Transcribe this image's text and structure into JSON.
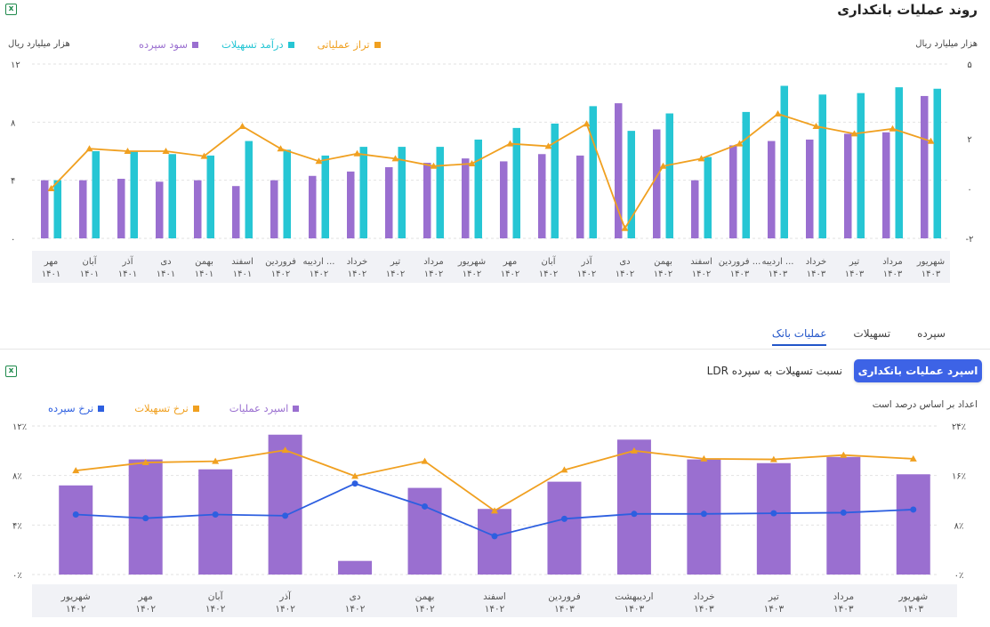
{
  "top_chart": {
    "title": "روند عملیات بانکداری",
    "unit_right": "هزار میلیارد ریال",
    "unit_left": "هزار میلیارد ریال",
    "legend": [
      {
        "label": "تراز عملیاتی",
        "color": "#f0a020"
      },
      {
        "label": "درآمد تسهیلات",
        "color": "#26c6d4"
      },
      {
        "label": "سود سپرده",
        "color": "#9a6fd0"
      }
    ]
  },
  "tabs": {
    "items": [
      "سپرده",
      "تسهیلات",
      "عملیات بانک"
    ],
    "active": "عملیات بانک"
  },
  "bottom_controls": {
    "primary_button": "اسپرد عملیات بانکداری",
    "secondary_button": "نسبت تسهیلات به سپرده LDR",
    "note": "اعداد بر اساس درصد است"
  },
  "bottom_chart": {
    "legend": [
      {
        "label": "اسپرد عملیات",
        "color": "#9a6fd0"
      },
      {
        "label": "نرخ تسهیلات",
        "color": "#f0a020"
      },
      {
        "label": "نرخ سپرده",
        "color": "#2d5fe0"
      }
    ]
  },
  "chart_data": [
    {
      "type": "bar",
      "title": "روند عملیات بانکداری",
      "x_direction": "right-to-left",
      "categories": [
        [
          "شهریور",
          "۱۴۰۳"
        ],
        [
          "مرداد",
          "۱۴۰۳"
        ],
        [
          "تیر",
          "۱۴۰۳"
        ],
        [
          "خرداد",
          "۱۴۰۳"
        ],
        [
          "اردیبه ...",
          "۱۴۰۳"
        ],
        [
          "فروردین ...",
          "۱۴۰۳"
        ],
        [
          "اسفند",
          "۱۴۰۲"
        ],
        [
          "بهمن",
          "۱۴۰۲"
        ],
        [
          "دی",
          "۱۴۰۲"
        ],
        [
          "آذر",
          "۱۴۰۲"
        ],
        [
          "آبان",
          "۱۴۰۲"
        ],
        [
          "مهر",
          "۱۴۰۲"
        ],
        [
          "شهریور",
          "۱۴۰۲"
        ],
        [
          "مرداد",
          "۱۴۰۲"
        ],
        [
          "تیر",
          "۱۴۰۲"
        ],
        [
          "خرداد",
          "۱۴۰۲"
        ],
        [
          "اردیبه ...",
          "۱۴۰۲"
        ],
        [
          "فروردین",
          "۱۴۰۲"
        ],
        [
          "اسفند",
          "۱۴۰۱"
        ],
        [
          "بهمن",
          "۱۴۰۱"
        ],
        [
          "دی",
          "۱۴۰۱"
        ],
        [
          "آذر",
          "۱۴۰۱"
        ],
        [
          "آبان",
          "۱۴۰۱"
        ],
        [
          "مهر",
          "۱۴۰۱"
        ]
      ],
      "series": [
        {
          "name": "سود سپرده",
          "kind": "bar",
          "axis": "left",
          "color": "#9a6fd0",
          "values": [
            9.8,
            7.3,
            7.2,
            6.8,
            6.7,
            6.4,
            4.0,
            7.5,
            9.3,
            5.7,
            5.8,
            5.3,
            5.5,
            5.2,
            4.9,
            4.6,
            4.3,
            4.0,
            3.6,
            4.0,
            3.9,
            4.1,
            4.0,
            4.0
          ]
        },
        {
          "name": "درآمد تسهیلات",
          "kind": "bar",
          "axis": "left",
          "color": "#26c6d4",
          "values": [
            10.3,
            10.4,
            10.0,
            9.9,
            10.5,
            8.7,
            5.6,
            8.6,
            7.4,
            9.1,
            7.9,
            7.6,
            6.8,
            6.3,
            6.3,
            6.3,
            5.7,
            6.1,
            6.7,
            5.7,
            5.8,
            6.0,
            6.0,
            4.0
          ]
        },
        {
          "name": "تراز عملیاتی",
          "kind": "line",
          "axis": "right",
          "color": "#f0a020",
          "values": [
            1.9,
            2.4,
            2.2,
            2.5,
            3.0,
            1.8,
            1.2,
            0.9,
            -1.6,
            2.6,
            1.7,
            1.8,
            1.0,
            0.9,
            1.2,
            1.4,
            1.1,
            1.6,
            2.5,
            1.3,
            1.5,
            1.5,
            1.6,
            0.0
          ]
        }
      ],
      "left_axis": {
        "label": "هزار میلیارد ریال",
        "range": [
          0,
          12
        ],
        "ticks": [
          "۰",
          "۴",
          "۸",
          "۱۲"
        ]
      },
      "right_axis": {
        "label": "هزار میلیارد ریال",
        "range": [
          -2,
          5
        ],
        "ticks": [
          "-۲",
          "۰",
          "۲",
          "۵"
        ]
      },
      "grid": true,
      "legend_position": "top-center"
    },
    {
      "type": "bar",
      "x_direction": "right-to-left",
      "note": "اعداد بر اساس درصد است",
      "categories": [
        [
          "شهریور",
          "۱۴۰۳"
        ],
        [
          "مرداد",
          "۱۴۰۳"
        ],
        [
          "تیر",
          "۱۴۰۳"
        ],
        [
          "خرداد",
          "۱۴۰۳"
        ],
        [
          "اردیبهشت",
          "۱۴۰۳"
        ],
        [
          "فروردین",
          "۱۴۰۳"
        ],
        [
          "اسفند",
          "۱۴۰۲"
        ],
        [
          "بهمن",
          "۱۴۰۲"
        ],
        [
          "دی",
          "۱۴۰۲"
        ],
        [
          "آذر",
          "۱۴۰۲"
        ],
        [
          "آبان",
          "۱۴۰۲"
        ],
        [
          "مهر",
          "۱۴۰۲"
        ],
        [
          "شهریور",
          "۱۴۰۲"
        ]
      ],
      "series": [
        {
          "name": "اسپرد عملیات",
          "kind": "bar",
          "axis": "left",
          "color": "#9a6fd0",
          "values": [
            8.1,
            9.5,
            9.0,
            9.3,
            10.9,
            7.5,
            5.3,
            7.0,
            1.1,
            11.3,
            8.5,
            9.3,
            7.2
          ]
        },
        {
          "name": "نرخ تسهیلات",
          "kind": "line",
          "axis": "right",
          "color": "#f0a020",
          "values": [
            18.7,
            19.3,
            18.6,
            18.7,
            20.0,
            16.9,
            10.3,
            18.3,
            15.9,
            20.1,
            18.3,
            18.1,
            16.8
          ]
        },
        {
          "name": "نرخ سپرده",
          "kind": "line",
          "axis": "right",
          "color": "#2d5fe0",
          "values": [
            10.5,
            10.0,
            9.9,
            9.8,
            9.8,
            9.0,
            6.2,
            11.0,
            14.7,
            9.5,
            9.7,
            9.1,
            9.7
          ]
        }
      ],
      "left_axis": {
        "range": [
          0,
          12
        ],
        "ticks": [
          "۰٪",
          "۴٪",
          "۸٪",
          "۱۲٪"
        ]
      },
      "right_axis": {
        "range": [
          0,
          24
        ],
        "ticks": [
          "۰٪",
          "۸٪",
          "۱۶٪",
          "۲۴٪"
        ]
      },
      "grid": true,
      "legend_position": "top-left"
    }
  ]
}
